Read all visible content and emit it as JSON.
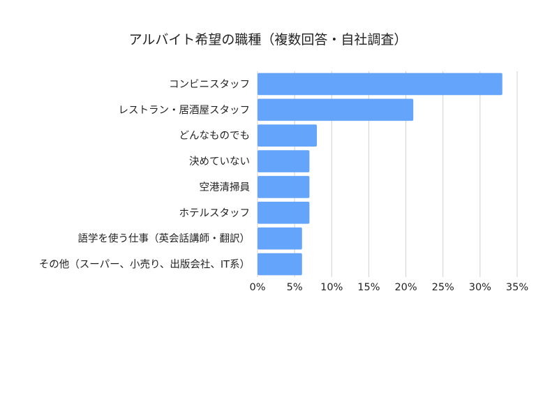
{
  "chart_data": {
    "type": "bar",
    "orientation": "horizontal",
    "title": "アルバイト希望の職種（複数回答・自社調査）",
    "categories": [
      "コンビニスタッフ",
      "レストラン・居酒屋スタッフ",
      "どんなものでも",
      "決めていない",
      "空港清掃員",
      "ホテルスタッフ",
      "語学を使う仕事（英会話講師・翻訳）",
      "その他（スーパー、小売り、出版会社、IT系）"
    ],
    "values": [
      33,
      21,
      8,
      7,
      7,
      7,
      6,
      6
    ],
    "unit": "%",
    "xlim": [
      0,
      35
    ],
    "xticks": [
      "0%",
      "5%",
      "10%",
      "15%",
      "20%",
      "25%",
      "30%",
      "35%"
    ],
    "grid": "vertical",
    "bar_color": "#64a4fa",
    "grid_color": "#d0d0d0"
  }
}
